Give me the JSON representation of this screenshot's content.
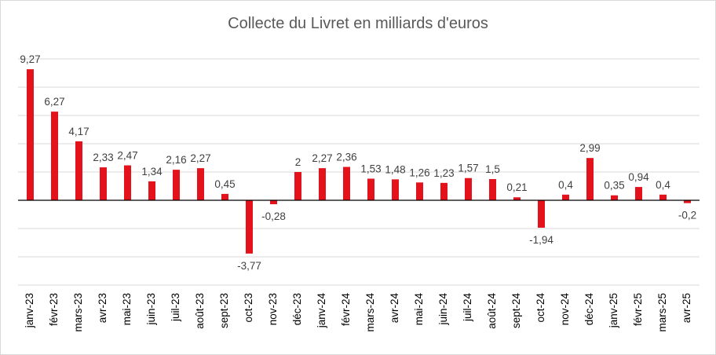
{
  "chart_data": {
    "type": "bar",
    "title": "Collecte du Livret en milliards d'euros",
    "categories": [
      "janv-23",
      "févr-23",
      "mars-23",
      "avr-23",
      "mai-23",
      "juin-23",
      "juil-23",
      "août-23",
      "sept-23",
      "oct-23",
      "nov-23",
      "déc-23",
      "janv-24",
      "févr-24",
      "mars-24",
      "avr-24",
      "mai-24",
      "juin-24",
      "juil-24",
      "août-24",
      "sept-24",
      "oct-24",
      "nov-24",
      "déc-24",
      "janv-25",
      "févr-25",
      "mars-25",
      "avr-25"
    ],
    "values": [
      9.27,
      6.27,
      4.17,
      2.33,
      2.47,
      1.34,
      2.16,
      2.27,
      0.45,
      -3.77,
      -0.28,
      2,
      2.27,
      2.36,
      1.53,
      1.48,
      1.26,
      1.23,
      1.57,
      1.5,
      0.21,
      -1.94,
      0.4,
      2.99,
      0.35,
      0.94,
      0.4,
      -0.2
    ],
    "value_labels": [
      "9,27",
      "6,27",
      "4,17",
      "2,33",
      "2,47",
      "1,34",
      "2,16",
      "2,27",
      "0,45",
      "-3,77",
      "-0,28",
      "2",
      "2,27",
      "2,36",
      "1,53",
      "1,48",
      "1,26",
      "1,23",
      "1,57",
      "1,5",
      "0,21",
      "-1,94",
      "0,4",
      "2,99",
      "0,35",
      "0,94",
      "0,4",
      "-0,2"
    ],
    "ylim": [
      -6,
      10
    ],
    "grid": true,
    "legend": "none",
    "bar_color": "#e3121b",
    "xlabel": "",
    "ylabel": ""
  }
}
